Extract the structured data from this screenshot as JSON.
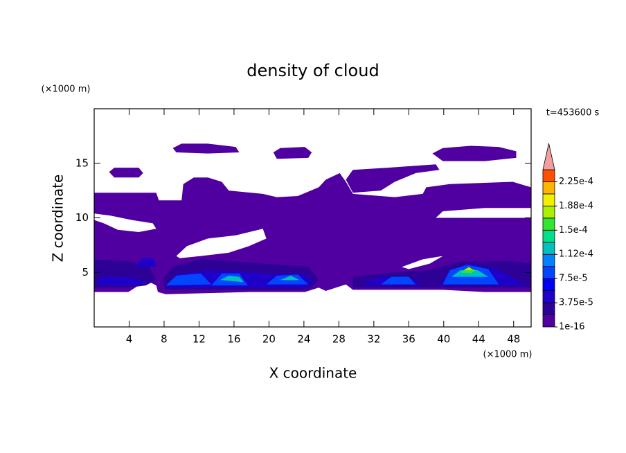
{
  "chart_data": {
    "type": "contour",
    "title": "density of cloud",
    "x_label": "X coordinate",
    "y_label": "Z coordinate",
    "x_unit": "(×1000 m)",
    "y_unit": "(×1000 m)",
    "time_label": "t=453600 s",
    "xlim": [
      0,
      50
    ],
    "ylim": [
      0,
      20
    ],
    "xticks": [
      4,
      8,
      12,
      16,
      20,
      24,
      28,
      32,
      36,
      40,
      44,
      48
    ],
    "yticks": [
      5,
      10,
      15
    ],
    "colorbar": {
      "clim": [
        1e-16,
        0.00024375
      ],
      "colors": [
        "#5000a0",
        "#2d0096",
        "#1e00c8",
        "#0000f0",
        "#0046ff",
        "#0082ff",
        "#00c0c0",
        "#00e08c",
        "#32e632",
        "#aaf000",
        "#f0f000",
        "#ffb400",
        "#ff5000"
      ],
      "extend_color": "#f0a0a0",
      "ticks": [
        {
          "value": 1e-16,
          "label": "1e-16"
        },
        {
          "value": 3.75e-05,
          "label": "3.75e-5"
        },
        {
          "value": 7.5e-05,
          "label": "7.5e-5"
        },
        {
          "value": 0.0001125,
          "label": "1.12e-4"
        },
        {
          "value": 0.00015,
          "label": "1.5e-4"
        },
        {
          "value": 0.0001875,
          "label": "1.88e-4"
        },
        {
          "value": 0.000225,
          "label": "2.25e-4"
        }
      ]
    },
    "regions": [
      {
        "value": 1e-05,
        "rings": [
          {
            "x": [
              0,
              7.1,
              7.4,
              10.0,
              10.2,
              11.4,
              13.0,
              14.6,
              15.4,
              19.3,
              20.9,
              23.3,
              25.7,
              26.5,
              28.1,
              28.8,
              29.6,
              34.4,
              37.6,
              38.0,
              40.7,
              47.9,
              50,
              50,
              44.7,
              39.9,
              39.1,
              50,
              50,
              44.7,
              39.9,
              29.6,
              28.8,
              26.5,
              25.7,
              24.1,
              17.7,
              8.2,
              7.3,
              7.1,
              5.9,
              4.7,
              3.9,
              0
            ],
            "z": [
              12.3,
              12.3,
              11.6,
              11.6,
              13.1,
              13.7,
              13.7,
              13.3,
              12.5,
              12.2,
              11.9,
              12.0,
              12.8,
              13.5,
              14.1,
              13.3,
              12.2,
              11.9,
              12.2,
              12.8,
              13.1,
              13.3,
              12.8,
              10.9,
              10.9,
              10.6,
              10.0,
              10.0,
              3.2,
              3.2,
              3.4,
              3.4,
              3.9,
              3.3,
              3.6,
              3.2,
              3.2,
              3.0,
              3.2,
              3.8,
              4.3,
              3.6,
              3.2,
              3.2
            ]
          },
          {
            "x": [
              0,
              1.9,
              4.3,
              6.7,
              7.1,
              5.1,
              2.7,
              1.1,
              0
            ],
            "z": [
              10.4,
              10.2,
              9.8,
              9.5,
              9.0,
              8.7,
              8.9,
              9.5,
              9.8
            ]
          },
          {
            "x": [
              9.4,
              10.6,
              13.0,
              16.2,
              19.3,
              19.7,
              17.7,
              15.4,
              12.2,
              9.8
            ],
            "z": [
              6.5,
              7.4,
              8.1,
              8.4,
              9.0,
              8.1,
              7.4,
              6.8,
              6.5,
              6.3
            ]
          },
          {
            "x": [
              35.2,
              37.6,
              39.9,
              38.4,
              36.0
            ],
            "z": [
              5.5,
              6.2,
              6.5,
              5.8,
              5.3
            ]
          }
        ]
      },
      {
        "value": 1e-05,
        "rings": [
          {
            "x": [
              1.7,
              2.3,
              5.1,
              5.6,
              5.1,
              2.3
            ],
            "z": [
              14.2,
              14.6,
              14.6,
              14.1,
              13.7,
              13.7
            ]
          },
          {
            "x": [
              9.0,
              10.0,
              13.0,
              16.2,
              16.6,
              13.0,
              9.4
            ],
            "z": [
              16.4,
              16.8,
              16.8,
              16.5,
              16.0,
              15.9,
              16.0
            ]
          },
          {
            "x": [
              20.5,
              21.3,
              24.1,
              24.9,
              24.5,
              20.9
            ],
            "z": [
              16.0,
              16.4,
              16.5,
              16.0,
              15.5,
              15.4
            ]
          },
          {
            "x": [
              28.8,
              29.6,
              33.6,
              39.1,
              39.5,
              36.8,
              34.4,
              32.8,
              29.6
            ],
            "z": [
              13.5,
              14.4,
              14.6,
              14.9,
              14.4,
              14.1,
              13.3,
              12.5,
              12.3
            ]
          },
          {
            "x": [
              38.7,
              39.9,
              43.1,
              46.3,
              48.3,
              48.3,
              44.7,
              39.9
            ],
            "z": [
              15.9,
              16.4,
              16.6,
              16.5,
              16.1,
              15.5,
              15.2,
              15.2
            ]
          }
        ]
      },
      {
        "value": 2.8e-05,
        "rings": [
          {
            "x": [
              0,
              3.9,
              6.3,
              7.1,
              5.9,
              3.9,
              0
            ],
            "z": [
              6.2,
              6.0,
              5.5,
              4.3,
              3.8,
              3.6,
              3.6
            ]
          },
          {
            "x": [
              7.8,
              9.0,
              12.2,
              16.2,
              19.3,
              24.5,
              25.7,
              24.5,
              8.2
            ],
            "z": [
              4.3,
              5.5,
              6.2,
              6.0,
              5.8,
              5.5,
              4.3,
              3.4,
              3.4
            ]
          },
          {
            "x": [
              29.6,
              29.6,
              34.4,
              38.4,
              41.9,
              47.9,
              50,
              50
            ],
            "z": [
              3.6,
              4.6,
              5.0,
              5.2,
              6.0,
              6.0,
              5.8,
              3.6
            ]
          }
        ]
      },
      {
        "value": 4.7e-05,
        "rings": [
          {
            "x": [
              0.3,
              0.7,
              3.9,
              6.3,
              4.7
            ],
            "z": [
              3.8,
              4.6,
              4.6,
              4.1,
              3.8
            ]
          },
          {
            "x": [
              8.2,
              9.4,
              13.0,
              16.2,
              19.3,
              24.1,
              25.2,
              24.1
            ],
            "z": [
              3.6,
              4.8,
              5.2,
              5.1,
              4.9,
              4.8,
              4.1,
              3.6
            ]
          },
          {
            "x": [
              30.4,
              32.8,
              36.0,
              37.6
            ],
            "z": [
              3.8,
              4.6,
              4.6,
              3.8
            ]
          },
          {
            "x": [
              39.5,
              40.7,
              43.1,
              46.3,
              48.3,
              49.5
            ],
            "z": [
              3.8,
              5.2,
              5.8,
              5.2,
              4.3,
              3.8
            ]
          },
          {
            "x": [
              4.7,
              5.5,
              6.8,
              7.1
            ],
            "z": [
              5.5,
              6.3,
              6.3,
              5.5
            ]
          }
        ]
      },
      {
        "value": 8e-05,
        "rings": [
          {
            "x": [
              8.2,
              9.4,
              12.2,
              13.4
            ],
            "z": [
              3.8,
              4.7,
              4.9,
              3.9
            ]
          },
          {
            "x": [
              13.4,
              14.6,
              16.6,
              17.6
            ],
            "z": [
              3.8,
              4.9,
              4.9,
              3.8
            ]
          },
          {
            "x": [
              19.7,
              20.9,
              23.3,
              24.5
            ],
            "z": [
              3.9,
              4.7,
              4.8,
              3.9
            ]
          },
          {
            "x": [
              32.8,
              34.0,
              36.0,
              36.8
            ],
            "z": [
              3.9,
              4.6,
              4.6,
              3.9
            ]
          },
          {
            "x": [
              39.9,
              40.7,
              42.7,
              45.1,
              46.3
            ],
            "z": [
              3.9,
              5.2,
              5.7,
              5.3,
              3.9
            ]
          }
        ]
      },
      {
        "value": 0.00012,
        "rings": [
          {
            "x": [
              14.4,
              15.4,
              16.6,
              17.1
            ],
            "z": [
              4.3,
              4.7,
              4.6,
              4.1
            ]
          },
          {
            "x": [
              21.3,
              22.5,
              23.5
            ],
            "z": [
              4.3,
              4.7,
              4.3
            ]
          },
          {
            "x": [
              40.9,
              41.9,
              43.9,
              45.1
            ],
            "z": [
              4.6,
              5.2,
              5.2,
              4.6
            ]
          }
        ]
      },
      {
        "value": 0.000155,
        "rings": [
          {
            "x": [
              41.9,
              42.7,
              43.7,
              43.1
            ],
            "z": [
              5.0,
              5.4,
              5.2,
              4.9
            ]
          }
        ]
      },
      {
        "value": 0.000175,
        "rings": [
          {
            "x": [
              42.3,
              42.9,
              43.4
            ],
            "z": [
              5.2,
              5.5,
              5.2
            ]
          }
        ]
      }
    ]
  }
}
